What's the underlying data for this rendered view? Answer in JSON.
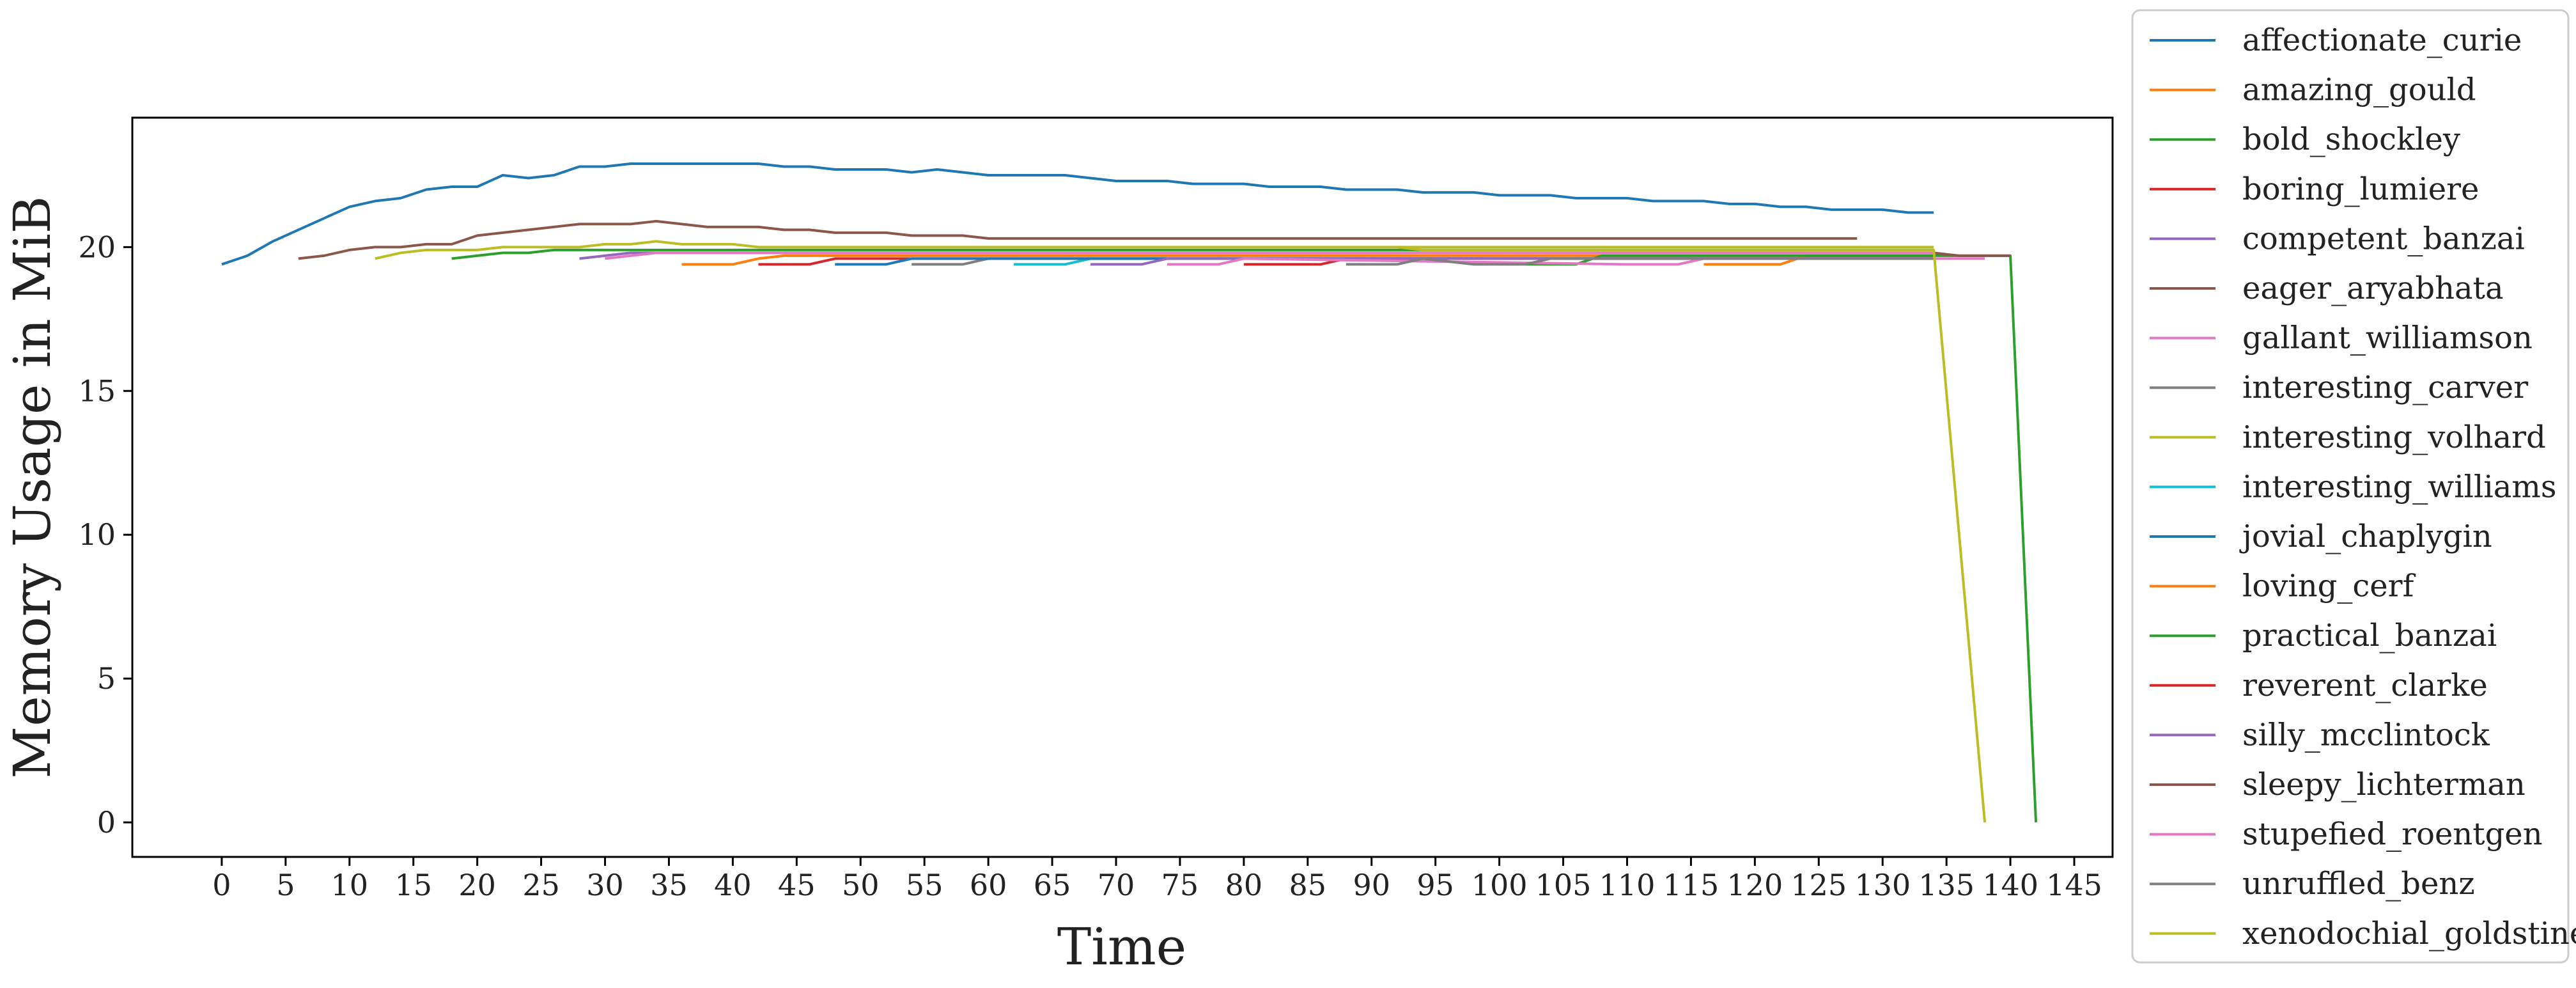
{
  "chart_data": {
    "type": "line",
    "title": "",
    "xlabel": "Time",
    "ylabel": "Memory Usage in MiB",
    "xlim": [
      -7,
      148
    ],
    "ylim": [
      -1.2,
      24.5
    ],
    "xticks": [
      "0",
      "5",
      "10",
      "15",
      "20",
      "25",
      "30",
      "35",
      "40",
      "45",
      "50",
      "55",
      "60",
      "65",
      "70",
      "75",
      "80",
      "85",
      "90",
      "95",
      "100",
      "105",
      "110",
      "115",
      "120",
      "125",
      "130",
      "135",
      "140",
      "145"
    ],
    "yticks": [
      "0",
      "5",
      "10",
      "15",
      "20"
    ],
    "grid": false,
    "legend_position": "outside-right",
    "series": [
      {
        "name": "affectionate_curie",
        "color": "#1f77b4",
        "x": [
          0,
          2,
          4,
          6,
          8,
          10,
          12,
          14,
          16,
          18,
          20,
          22,
          24,
          26,
          28,
          30,
          32,
          34,
          36,
          38,
          40,
          42,
          44,
          46,
          48,
          50,
          52,
          54,
          56,
          58,
          60,
          62,
          64,
          66,
          68,
          70,
          72,
          74,
          76,
          78,
          80,
          82,
          84,
          86,
          88,
          90,
          92,
          94,
          96,
          98,
          100,
          102,
          104,
          106,
          108,
          110,
          112,
          114,
          116,
          118,
          120,
          122,
          124,
          126,
          128,
          130,
          132,
          134
        ],
        "y": [
          19.4,
          19.7,
          20.2,
          20.6,
          21.0,
          21.4,
          21.6,
          21.7,
          22.0,
          22.1,
          22.1,
          22.5,
          22.4,
          22.5,
          22.8,
          22.8,
          22.9,
          22.9,
          22.9,
          22.9,
          22.9,
          22.9,
          22.8,
          22.8,
          22.7,
          22.7,
          22.7,
          22.6,
          22.7,
          22.6,
          22.5,
          22.5,
          22.5,
          22.5,
          22.4,
          22.3,
          22.3,
          22.3,
          22.2,
          22.2,
          22.2,
          22.1,
          22.1,
          22.1,
          22.0,
          22.0,
          22.0,
          21.9,
          21.9,
          21.9,
          21.8,
          21.8,
          21.8,
          21.7,
          21.7,
          21.7,
          21.6,
          21.6,
          21.6,
          21.5,
          21.5,
          21.4,
          21.4,
          21.3,
          21.3,
          21.3,
          21.2,
          21.2
        ]
      },
      {
        "name": "amazing_gould",
        "color": "#ff7f0e",
        "x": [
          36,
          40,
          42,
          44,
          48,
          134
        ],
        "y": [
          19.4,
          19.4,
          19.6,
          19.7,
          19.7,
          19.7
        ]
      },
      {
        "name": "bold_shockley",
        "color": "#2ca02c",
        "x": [
          18,
          20,
          22,
          24,
          26,
          134
        ],
        "y": [
          19.6,
          19.7,
          19.8,
          19.8,
          19.9,
          19.9
        ]
      },
      {
        "name": "boring_lumiere",
        "color": "#d62728",
        "x": [
          42,
          46,
          48,
          50,
          134
        ],
        "y": [
          19.4,
          19.4,
          19.6,
          19.6,
          19.6
        ]
      },
      {
        "name": "competent_banzai",
        "color": "#9467bd",
        "x": [
          28,
          30,
          32,
          34,
          36,
          134
        ],
        "y": [
          19.6,
          19.7,
          19.8,
          19.8,
          19.8,
          19.8
        ]
      },
      {
        "name": "eager_aryabhata",
        "color": "#8c564b",
        "x": [
          6,
          8,
          10,
          12,
          14,
          16,
          18,
          20,
          22,
          24,
          26,
          28,
          30,
          32,
          34,
          36,
          38,
          40,
          42,
          44,
          46,
          48,
          50,
          52,
          54,
          56,
          58,
          60,
          62,
          64,
          66,
          128
        ],
        "y": [
          19.6,
          19.7,
          19.9,
          20.0,
          20.0,
          20.1,
          20.1,
          20.4,
          20.5,
          20.6,
          20.7,
          20.8,
          20.8,
          20.8,
          20.9,
          20.8,
          20.7,
          20.7,
          20.7,
          20.6,
          20.6,
          20.5,
          20.5,
          20.5,
          20.4,
          20.4,
          20.4,
          20.3,
          20.3,
          20.3,
          20.3,
          20.3
        ]
      },
      {
        "name": "gallant_williamson",
        "color": "#e377c2",
        "x": [
          30,
          32,
          34,
          134
        ],
        "y": [
          19.6,
          19.7,
          19.8,
          19.8
        ]
      },
      {
        "name": "interesting_carver",
        "color": "#7f7f7f",
        "x": [
          54,
          58,
          60,
          134
        ],
        "y": [
          19.4,
          19.4,
          19.6,
          19.6
        ]
      },
      {
        "name": "interesting_volhard",
        "color": "#bcbd22",
        "x": [
          12,
          14,
          16,
          18,
          20,
          22,
          24,
          26,
          28,
          30,
          32,
          34,
          36,
          38,
          40,
          42,
          44,
          46,
          134
        ],
        "y": [
          19.6,
          19.8,
          19.9,
          19.9,
          19.9,
          20.0,
          20.0,
          20.0,
          20.0,
          20.1,
          20.1,
          20.2,
          20.1,
          20.1,
          20.1,
          20.0,
          20.0,
          20.0,
          20.0
        ]
      },
      {
        "name": "interesting_williams",
        "color": "#17becf",
        "x": [
          62,
          66,
          68,
          134
        ],
        "y": [
          19.4,
          19.4,
          19.6,
          19.6
        ]
      },
      {
        "name": "jovial_chaplygin",
        "color": "#1f77b4",
        "x": [
          48,
          52,
          54,
          134
        ],
        "y": [
          19.4,
          19.4,
          19.6,
          19.6
        ]
      },
      {
        "name": "loving_cerf",
        "color": "#ff7f0e",
        "x": [
          116,
          122,
          124,
          134
        ],
        "y": [
          19.4,
          19.4,
          19.7,
          19.7
        ]
      },
      {
        "name": "practical_banzai",
        "color": "#2ca02c",
        "x": [
          102,
          106,
          108,
          140,
          142
        ],
        "y": [
          19.4,
          19.4,
          19.7,
          19.7,
          0
        ]
      },
      {
        "name": "reverent_clarke",
        "color": "#d62728",
        "x": [
          80,
          86,
          88,
          134
        ],
        "y": [
          19.4,
          19.4,
          19.6,
          19.6
        ]
      },
      {
        "name": "silly_mcclintock",
        "color": "#9467bd",
        "x": [
          68,
          72,
          74,
          134
        ],
        "y": [
          19.4,
          19.4,
          19.6,
          19.6
        ]
      },
      {
        "name": "sleepy_lichterman",
        "color": "#8c564b",
        "x": [
          134,
          136,
          138,
          140
        ],
        "y": [
          19.8,
          19.7,
          19.7,
          19.7
        ]
      },
      {
        "name": "stupefied_roentgen",
        "color": "#e377c2",
        "x": [
          74,
          78,
          80,
          110,
          114,
          116,
          138
        ],
        "y": [
          19.4,
          19.4,
          19.6,
          19.4,
          19.4,
          19.6,
          19.6
        ]
      },
      {
        "name": "unruffled_benz",
        "color": "#7f7f7f",
        "x": [
          88,
          92,
          94,
          98,
          102,
          104,
          134
        ],
        "y": [
          19.4,
          19.4,
          19.6,
          19.4,
          19.4,
          19.6,
          19.6
        ]
      },
      {
        "name": "xenodochial_goldstine",
        "color": "#bcbd22",
        "x": [
          92,
          94,
          134,
          138
        ],
        "y": [
          20.0,
          19.9,
          19.9,
          0
        ]
      }
    ]
  }
}
